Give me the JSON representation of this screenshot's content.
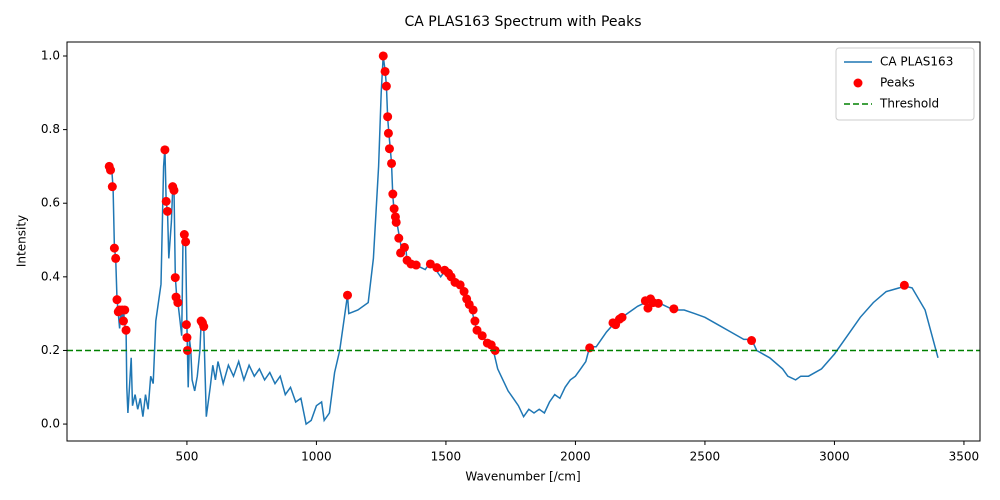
{
  "chart_data": {
    "type": "line",
    "title": "CA PLAS163 Spectrum with Peaks",
    "x_label": "Wavenumber [/cm]",
    "y_label": "Intensity",
    "xlim": [
      37,
      3562
    ],
    "ylim": [
      -0.046,
      1.038
    ],
    "xticks": [
      500,
      1000,
      1500,
      2000,
      2500,
      3000,
      3500
    ],
    "yticks": [
      {
        "value": 0,
        "label": "0.0"
      },
      {
        "value": 0.2,
        "label": "0.2"
      },
      {
        "value": 0.4,
        "label": "0.4"
      },
      {
        "value": 0.6,
        "label": "0.6"
      },
      {
        "value": 0.8,
        "label": "0.8"
      },
      {
        "value": 1,
        "label": "1.0"
      }
    ],
    "legend": "upper right",
    "series": [
      {
        "name": "CA PLAS163",
        "type": "line",
        "color": "#1f77b4",
        "x": [
          200,
          210,
          215,
          220,
          225,
          230,
          235,
          240,
          245,
          250,
          255,
          260,
          265,
          268,
          272,
          280,
          285,
          290,
          300,
          310,
          320,
          330,
          340,
          350,
          360,
          370,
          380,
          390,
          400,
          410,
          415,
          420,
          425,
          430,
          440,
          445,
          450,
          455,
          460,
          465,
          470,
          480,
          485,
          490,
          495,
          500,
          505,
          510,
          515,
          520,
          530,
          540,
          550,
          555,
          560,
          565,
          575,
          590,
          600,
          610,
          620,
          640,
          660,
          680,
          700,
          720,
          740,
          760,
          780,
          800,
          820,
          840,
          860,
          880,
          900,
          920,
          940,
          960,
          980,
          1000,
          1020,
          1030,
          1050,
          1070,
          1090,
          1110,
          1120,
          1125,
          1160,
          1200,
          1220,
          1240,
          1250,
          1258,
          1265,
          1270,
          1275,
          1280,
          1285,
          1290,
          1295,
          1300,
          1305,
          1310,
          1320,
          1330,
          1345,
          1350,
          1370,
          1390,
          1420,
          1440,
          1460,
          1480,
          1500,
          1520,
          1540,
          1560,
          1580,
          1600,
          1610,
          1620,
          1640,
          1660,
          1680,
          1700,
          1720,
          1740,
          1760,
          1780,
          1800,
          1820,
          1840,
          1860,
          1880,
          1900,
          1920,
          1940,
          1960,
          1980,
          2000,
          2020,
          2040,
          2055,
          2080,
          2100,
          2120,
          2145,
          2160,
          2180,
          2200,
          2240,
          2270,
          2290,
          2320,
          2350,
          2380,
          2420,
          2460,
          2500,
          2550,
          2600,
          2650,
          2680,
          2700,
          2750,
          2800,
          2820,
          2850,
          2870,
          2900,
          2950,
          3000,
          3050,
          3100,
          3150,
          3200,
          3250,
          3270,
          3300,
          3350,
          3400
        ],
        "values": [
          0.7,
          0.69,
          0.64,
          0.48,
          0.45,
          0.34,
          0.3,
          0.26,
          0.31,
          0.28,
          0.31,
          0.27,
          0.25,
          0.1,
          0.03,
          0.12,
          0.18,
          0.05,
          0.08,
          0.04,
          0.07,
          0.02,
          0.08,
          0.04,
          0.13,
          0.11,
          0.28,
          0.33,
          0.38,
          0.7,
          0.75,
          0.6,
          0.58,
          0.45,
          0.55,
          0.64,
          0.64,
          0.4,
          0.35,
          0.33,
          0.3,
          0.24,
          0.5,
          0.51,
          0.49,
          0.27,
          0.1,
          0.23,
          0.2,
          0.12,
          0.09,
          0.13,
          0.2,
          0.28,
          0.28,
          0.26,
          0.02,
          0.1,
          0.16,
          0.12,
          0.17,
          0.11,
          0.16,
          0.13,
          0.17,
          0.12,
          0.16,
          0.13,
          0.15,
          0.12,
          0.14,
          0.11,
          0.13,
          0.08,
          0.1,
          0.06,
          0.07,
          0.0,
          0.01,
          0.05,
          0.06,
          0.01,
          0.03,
          0.14,
          0.2,
          0.3,
          0.35,
          0.3,
          0.31,
          0.33,
          0.45,
          0.7,
          0.9,
          1.0,
          0.96,
          0.92,
          0.83,
          0.79,
          0.75,
          0.71,
          0.62,
          0.58,
          0.56,
          0.55,
          0.51,
          0.47,
          0.48,
          0.44,
          0.43,
          0.43,
          0.42,
          0.44,
          0.42,
          0.4,
          0.42,
          0.4,
          0.38,
          0.37,
          0.34,
          0.31,
          0.28,
          0.25,
          0.24,
          0.22,
          0.21,
          0.15,
          0.12,
          0.09,
          0.07,
          0.05,
          0.02,
          0.04,
          0.03,
          0.04,
          0.03,
          0.06,
          0.08,
          0.07,
          0.1,
          0.12,
          0.13,
          0.15,
          0.17,
          0.21,
          0.21,
          0.23,
          0.25,
          0.27,
          0.28,
          0.29,
          0.3,
          0.32,
          0.33,
          0.34,
          0.33,
          0.32,
          0.31,
          0.31,
          0.3,
          0.29,
          0.27,
          0.25,
          0.23,
          0.23,
          0.2,
          0.18,
          0.15,
          0.13,
          0.12,
          0.13,
          0.13,
          0.15,
          0.19,
          0.24,
          0.29,
          0.33,
          0.36,
          0.37,
          0.375,
          0.37,
          0.31,
          0.18
        ]
      },
      {
        "name": "Peaks",
        "type": "scatter",
        "color": "#ff0000",
        "x": [
          200,
          205,
          212,
          220,
          225,
          230,
          235,
          240,
          250,
          255,
          260,
          265,
          415,
          420,
          425,
          445,
          450,
          455,
          458,
          465,
          490,
          495,
          498,
          500,
          502,
          555,
          560,
          565,
          1120,
          1258,
          1265,
          1270,
          1275,
          1278,
          1282,
          1290,
          1295,
          1300,
          1305,
          1308,
          1318,
          1325,
          1340,
          1350,
          1365,
          1385,
          1440,
          1465,
          1495,
          1510,
          1520,
          1535,
          1555,
          1570,
          1580,
          1590,
          1605,
          1612,
          1620,
          1640,
          1660,
          1675,
          1690,
          2055,
          2145,
          2155,
          2170,
          2180,
          2270,
          2280,
          2290,
          2300,
          2320,
          2380,
          2680,
          3270
        ],
        "values": [
          0.7,
          0.69,
          0.645,
          0.478,
          0.45,
          0.338,
          0.305,
          0.31,
          0.31,
          0.28,
          0.31,
          0.255,
          0.745,
          0.605,
          0.578,
          0.645,
          0.635,
          0.398,
          0.345,
          0.33,
          0.515,
          0.495,
          0.27,
          0.235,
          0.2,
          0.28,
          0.275,
          0.265,
          0.35,
          1.0,
          0.958,
          0.918,
          0.835,
          0.79,
          0.748,
          0.708,
          0.625,
          0.585,
          0.563,
          0.548,
          0.505,
          0.465,
          0.48,
          0.445,
          0.435,
          0.432,
          0.435,
          0.425,
          0.418,
          0.41,
          0.4,
          0.385,
          0.378,
          0.36,
          0.34,
          0.325,
          0.31,
          0.28,
          0.255,
          0.24,
          0.22,
          0.215,
          0.2,
          0.207,
          0.275,
          0.27,
          0.285,
          0.29,
          0.335,
          0.315,
          0.34,
          0.33,
          0.328,
          0.313,
          0.227,
          0.377
        ]
      },
      {
        "name": "Threshold",
        "type": "hline",
        "color": "#008000",
        "value": 0.2
      }
    ]
  }
}
